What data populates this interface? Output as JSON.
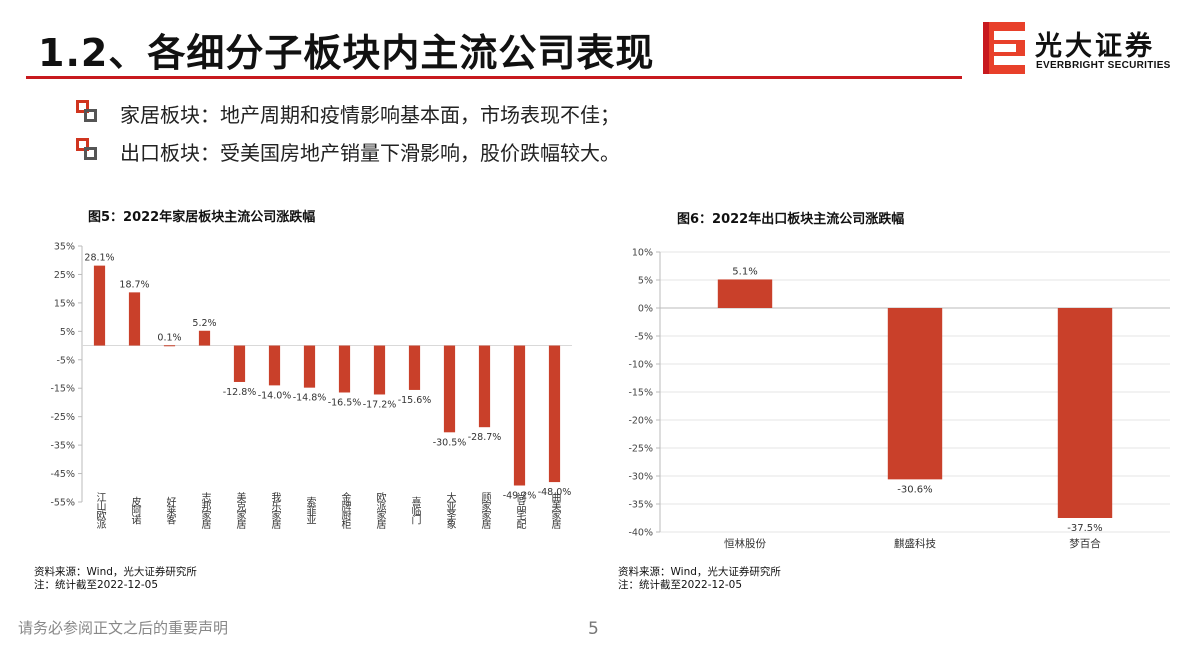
{
  "page": {
    "title": "1.2、各细分子板块内主流公司表现",
    "logo": {
      "cn": "光大证券",
      "en": "EVERBRIGHT SECURITIES"
    },
    "bullets": [
      "家居板块：地产周期和疫情影响基本面，市场表现不佳；",
      "出口板块：受美国房地产销量下滑影响，股价跌幅较大。"
    ],
    "footer": "请务必参阅正文之后的重要声明",
    "page_number": "5",
    "colors": {
      "brand_red": "#c8191e",
      "bar": "#c9402a",
      "axis": "#bbbbbb"
    }
  },
  "chart_data": [
    {
      "type": "bar",
      "title": "图5：2022年家居板块主流公司涨跌幅",
      "categories": [
        "江山欧派",
        "皮阿诺",
        "好莱客",
        "志邦家居",
        "美克家居",
        "我乐家居",
        "索菲亚",
        "金牌厨柜",
        "欧派家居",
        "喜临门",
        "大亚圣象",
        "顾家家居",
        "尚品宅配",
        "曲美家居"
      ],
      "values": [
        28.1,
        18.7,
        0.1,
        5.2,
        -12.8,
        -14.0,
        -14.8,
        -16.5,
        -17.2,
        -15.6,
        -30.5,
        -28.7,
        -49.2,
        -48.0
      ],
      "value_labels": [
        "28.1%",
        "18.7%",
        "0.1%",
        "5.2%",
        "-12.8%",
        "-14.0%",
        "-14.8%",
        "-16.5%",
        "-17.2%",
        "-15.6%",
        "-30.5%",
        "-28.7%",
        "-49.2%",
        "-48.0%"
      ],
      "yticks": [
        35,
        25,
        15,
        5,
        -5,
        -15,
        -25,
        -35,
        -45,
        -55
      ],
      "ytick_labels": [
        "35%",
        "25%",
        "15%",
        "5%",
        "-5%",
        "-15%",
        "-25%",
        "-35%",
        "-45%",
        "-55%"
      ],
      "ylim": [
        -55,
        35
      ],
      "grid": false,
      "source_lines": [
        "资料来源：Wind，光大证券研究所",
        "注：统计截至2022-12-05"
      ]
    },
    {
      "type": "bar",
      "title": "图6：2022年出口板块主流公司涨跌幅",
      "categories": [
        "恒林股份",
        "麒盛科技",
        "梦百合"
      ],
      "values": [
        5.1,
        -30.6,
        -37.5
      ],
      "value_labels": [
        "5.1%",
        "-30.6%",
        "-37.5%"
      ],
      "yticks": [
        10,
        5,
        0,
        -5,
        -10,
        -15,
        -20,
        -25,
        -30,
        -35,
        -40
      ],
      "ytick_labels": [
        "10%",
        "5%",
        "0%",
        "-5%",
        "-10%",
        "-15%",
        "-20%",
        "-25%",
        "-30%",
        "-35%",
        "-40%"
      ],
      "ylim": [
        -40,
        10
      ],
      "grid": true,
      "source_lines": [
        "资料来源：Wind，光大证券研究所",
        "注：统计截至2022-12-05"
      ]
    }
  ]
}
